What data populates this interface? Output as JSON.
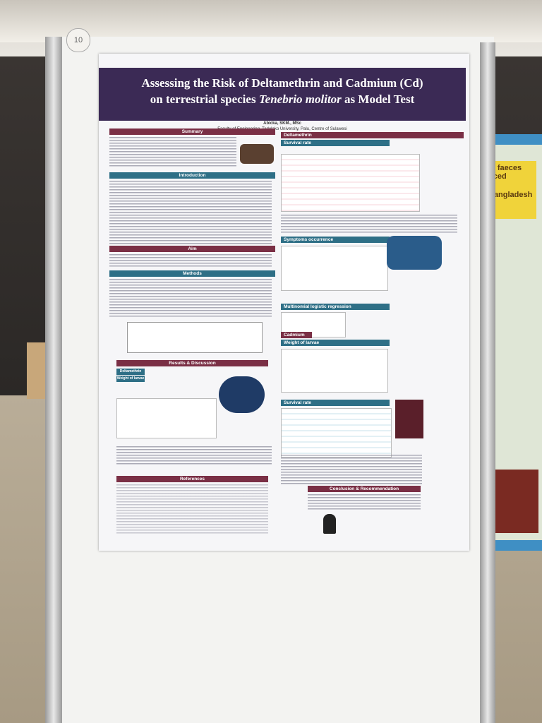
{
  "board": {
    "number": "10"
  },
  "poster": {
    "title_line1": "Assessing the Risk of Deltamethrin and Cadmium (Cd)",
    "title_line2_pre": "on terrestrial species",
    "title_line2_italic": "Tenebrio molitor",
    "title_line2_post": "as Model Test",
    "author": "Abicka, SKM., MSc",
    "affiliation": "Faculty of Engineering, Tadulako University, Palu, Centre of Sulawesi",
    "left_sections": [
      "Summary",
      "Introduction",
      "Aim",
      "Methods",
      "Results & Discussion",
      "References"
    ],
    "right_sections": [
      "Deltamethrin",
      "Survival rate",
      "Symptoms occurrence",
      "Multinomial logistic regression",
      "Cadmium",
      "Weight of larvae",
      "Survival rate",
      "Conclusion & Recommendation"
    ],
    "sub_labels": [
      "Deltamethrin",
      "Weight of larvae"
    ]
  },
  "neighbor_poster": {
    "lines": [
      "ld faeces",
      "uced",
      "Bangladesh"
    ]
  }
}
